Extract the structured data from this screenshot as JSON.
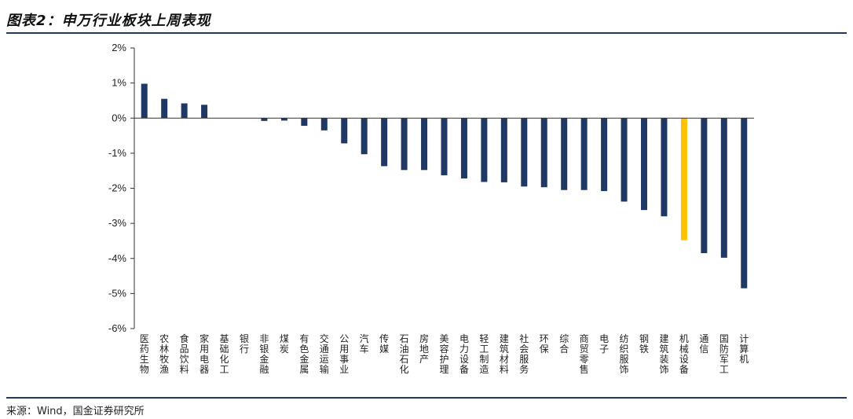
{
  "header": {
    "title": "图表2：申万行业板块上周表现"
  },
  "footer": {
    "source": "来源：Wind，国金证券研究所"
  },
  "colors": {
    "bar": "#1f3864",
    "highlight": "#ffc000",
    "axis": "#333333",
    "rule": "#1f3864"
  },
  "chart_data": {
    "type": "bar",
    "title": "图表2：申万行业板块上周表现",
    "xlabel": "",
    "ylabel": "",
    "ylim": [
      -6,
      2
    ],
    "yticks": [
      2,
      1,
      0,
      -1,
      -2,
      -3,
      -4,
      -5,
      -6
    ],
    "ytick_labels": [
      "2%",
      "1%",
      "0%",
      "-1%",
      "-2%",
      "-3%",
      "-4%",
      "-5%",
      "-6%"
    ],
    "grid": false,
    "legend": "none",
    "highlight_category": "机械设备",
    "categories": [
      "医药生物",
      "农林牧渔",
      "食品饮料",
      "家用电器",
      "基础化工",
      "银行",
      "非银金融",
      "煤炭",
      "有色金属",
      "交通运输",
      "公用事业",
      "汽车",
      "传媒",
      "石油石化",
      "房地产",
      "美容护理",
      "电力设备",
      "轻工制造",
      "建筑材料",
      "社会服务",
      "环保",
      "综合",
      "商贸零售",
      "电子",
      "纺织服饰",
      "钢铁",
      "建筑装饰",
      "机械设备",
      "通信",
      "国防军工",
      "计算机"
    ],
    "values": [
      0.98,
      0.55,
      0.42,
      0.38,
      0.0,
      0.0,
      -0.08,
      -0.07,
      -0.22,
      -0.35,
      -0.72,
      -1.03,
      -1.37,
      -1.48,
      -1.48,
      -1.63,
      -1.72,
      -1.82,
      -1.83,
      -1.95,
      -1.97,
      -2.05,
      -2.05,
      -2.08,
      -2.38,
      -2.62,
      -2.8,
      -3.48,
      -3.85,
      -3.98,
      -4.85
    ]
  }
}
